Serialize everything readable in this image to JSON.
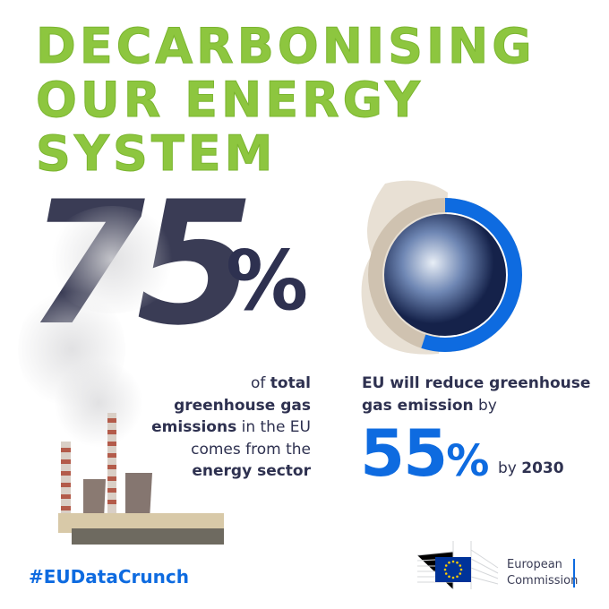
{
  "title": {
    "lines": [
      "DECARBONISING",
      "OUR ENERGY",
      "SYSTEM"
    ]
  },
  "stat_left": {
    "value": "75",
    "unit": "%",
    "text": {
      "p1": "of ",
      "b1": "total",
      "b2": "greenhouse gas",
      "b3": "emissions",
      "p2": " in the EU",
      "p3": "comes from the",
      "b4": "energy sector"
    }
  },
  "stat_right": {
    "line1": "EU will reduce greenhouse",
    "line2_bold": "gas emission",
    "line2_rest": " by",
    "value": "55",
    "unit": "%",
    "by": "by ",
    "year": "2030",
    "ring_fraction": 0.55
  },
  "hashtag": "#EUDataCrunch",
  "logo": {
    "line1": "European",
    "line2": "Commission"
  },
  "colors": {
    "green": "#8dc63f",
    "blue": "#0e6be0",
    "navy": "#2e3150"
  }
}
